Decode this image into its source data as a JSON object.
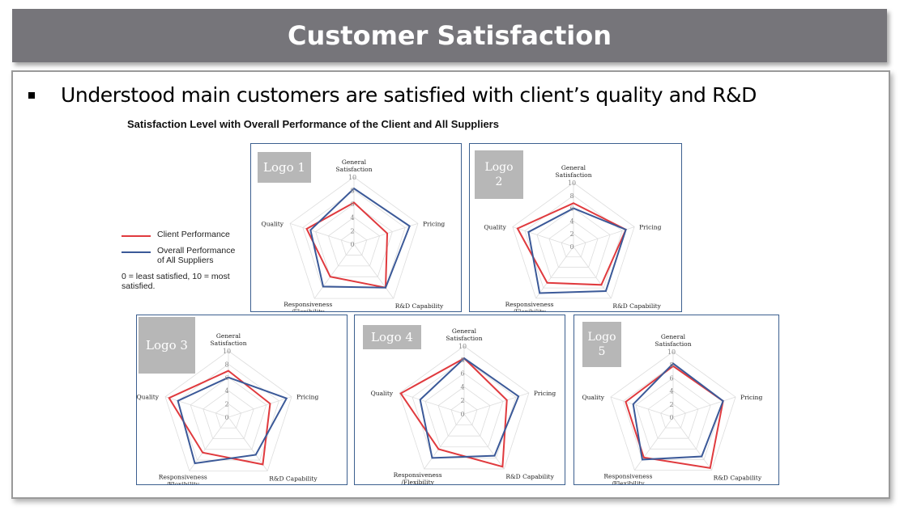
{
  "header": {
    "title": "Customer Satisfaction"
  },
  "bullet": {
    "text": "Understood main customers are satisfied with client’s quality and R&D"
  },
  "figure_title": "Satisfaction Level with Overall Performance of the Client and All Suppliers",
  "legend": {
    "client": "Client Performance",
    "overall": "Overall  Performance of All Suppliers",
    "note": "0 = least satisfied, 10 = most satisfied."
  },
  "colors": {
    "client": "#e03a3e",
    "overall": "#3b5998",
    "header_bg": "#76757a",
    "panel_border": "#3c5f8f",
    "logo_bg": "#b7b7b7"
  },
  "chart_data": [
    {
      "type": "radar",
      "logo": "Logo 1",
      "axes": [
        "General Satisfaction",
        "Pricing",
        "R&D Capability",
        "Responsiveness /Flexibility",
        "Quality"
      ],
      "ticks": [
        0,
        2,
        4,
        6,
        8,
        10
      ],
      "range": [
        0,
        10
      ],
      "series": [
        {
          "name": "Client Performance",
          "values": [
            6.2,
            5.2,
            8.0,
            6.0,
            7.4
          ]
        },
        {
          "name": "Overall  Performance of All Suppliers",
          "values": [
            8.3,
            8.7,
            8.0,
            7.8,
            6.8
          ]
        }
      ]
    },
    {
      "type": "radar",
      "logo": "Logo 2",
      "axes": [
        "General Satisfaction",
        "Pricing",
        "R&D Capability",
        "Responsiveness /Flexibility",
        "Quality"
      ],
      "ticks": [
        0,
        2,
        4,
        6,
        8,
        10
      ],
      "range": [
        0,
        10
      ],
      "series": [
        {
          "name": "Client Performance",
          "values": [
            6.8,
            8.6,
            7.4,
            7.0,
            9.2
          ]
        },
        {
          "name": "Overall  Performance of All Suppliers",
          "values": [
            6.0,
            8.6,
            8.6,
            9.0,
            7.4
          ]
        }
      ]
    },
    {
      "type": "radar",
      "logo": "Logo 3",
      "axes": [
        "General Satisfaction",
        "Pricing",
        "R&D Capability",
        "Responsiveness /Flexibility",
        "Quality"
      ],
      "ticks": [
        0,
        2,
        4,
        6,
        8,
        10
      ],
      "range": [
        0,
        10
      ],
      "series": [
        {
          "name": "Client Performance",
          "values": [
            7.0,
            6.6,
            8.8,
            6.6,
            9.4
          ]
        },
        {
          "name": "Overall  Performance of All Suppliers",
          "values": [
            6.0,
            9.2,
            7.0,
            8.6,
            8.0
          ]
        }
      ]
    },
    {
      "type": "radar",
      "logo": "Logo 4",
      "axes": [
        "General Satisfaction",
        "Pricing",
        "R&D Capability",
        "Responsiveness /Flexibility",
        "Quality"
      ],
      "ticks": [
        0,
        2,
        4,
        6,
        8,
        10
      ],
      "range": [
        0,
        10
      ],
      "series": [
        {
          "name": "Client Performance",
          "values": [
            8.2,
            6.6,
            9.6,
            6.4,
            9.8
          ]
        },
        {
          "name": "Overall  Performance of All Suppliers",
          "values": [
            8.2,
            8.4,
            7.6,
            8.0,
            6.8
          ]
        }
      ]
    },
    {
      "type": "radar",
      "logo": "Logo 5",
      "axes": [
        "General Satisfaction",
        "Pricing",
        "R&D Capability",
        "Responsiveness /Flexibility",
        "Quality"
      ],
      "ticks": [
        0,
        2,
        4,
        6,
        8,
        10
      ],
      "range": [
        0,
        10
      ],
      "series": [
        {
          "name": "Client Performance",
          "values": [
            7.8,
            8.0,
            9.6,
            7.6,
            7.6
          ]
        },
        {
          "name": "Overall  Performance of All Suppliers",
          "values": [
            8.2,
            8.0,
            7.4,
            8.0,
            6.4
          ]
        }
      ]
    }
  ]
}
